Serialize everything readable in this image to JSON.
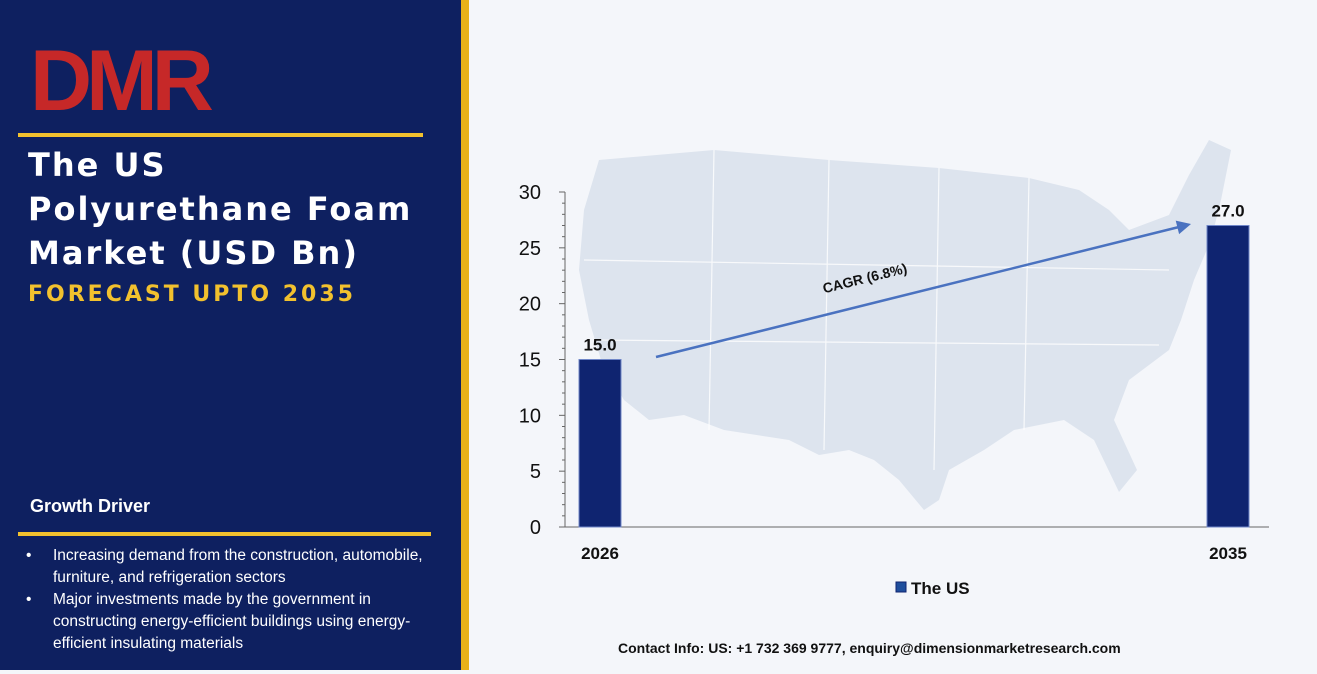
{
  "brand": {
    "logo_text": "DMR"
  },
  "sidebar": {
    "title_lines": [
      "The US",
      "Polyurethane Foam",
      "Market (USD Bn)"
    ],
    "subtitle": "FORECAST UPTO 2035",
    "growth_driver_heading": "Growth Driver",
    "growth_drivers": [
      "Increasing demand from the construction, automobile, furniture, and refrigeration sectors",
      "Major investments made by the government in constructing energy-efficient buildings using energy-efficient insulating materials"
    ]
  },
  "footer": {
    "contact": "Contact Info: US: +1 732 369 9777, enquiry@dimensionmarketresearch.com"
  },
  "colors": {
    "navy": "#0e2060",
    "gold": "#f2c12e",
    "bar": "#0f2470",
    "arrow": "#4a72c0",
    "map": "#dfe6f0"
  },
  "chart_data": {
    "type": "bar",
    "categories": [
      "2026",
      "2035"
    ],
    "series": [
      {
        "name": "The US",
        "values": [
          15.0,
          27.0
        ]
      }
    ],
    "data_labels": [
      "15.0",
      "27.0"
    ],
    "ylim": [
      0,
      30
    ],
    "yticks": [
      0,
      5,
      10,
      15,
      20,
      25,
      30
    ],
    "annotation": "CAGR (6.8%)",
    "legend": "bottom-center",
    "grid": false
  }
}
